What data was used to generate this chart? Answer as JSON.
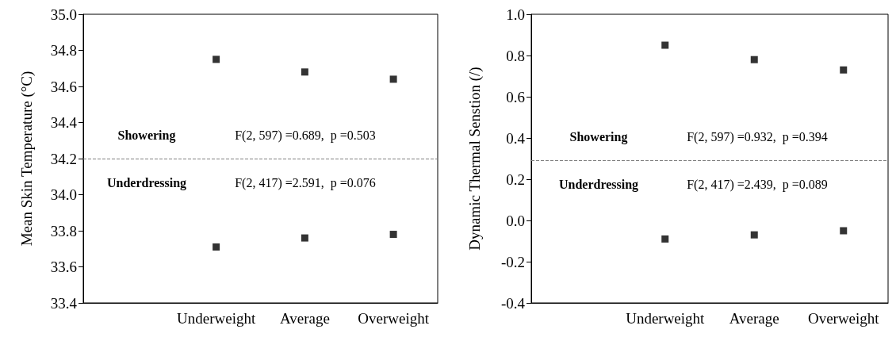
{
  "chart_data": [
    {
      "type": "scatter",
      "ylabel": "Mean Skin Temperature (°C)",
      "categories": [
        null,
        "Underweight",
        "Average",
        "Overweight"
      ],
      "series": [
        {
          "color": "#000000",
          "values": [
            null,
            34.75,
            34.68,
            34.64
          ]
        },
        {
          "color": "#000000",
          "values": [
            null,
            33.71,
            33.76,
            33.78
          ]
        }
      ],
      "ylim": [
        33.4,
        35.0
      ],
      "yticks": [
        33.4,
        33.6,
        33.8,
        {
          "value": 34,
          "label": "34.0"
        },
        34.2,
        34.4,
        34.6,
        34.8,
        {
          "value": 35,
          "label": "35.0"
        }
      ],
      "grid": false,
      "marker": "square",
      "ref_lines": [
        {
          "axis": "y",
          "value": 34.2,
          "color": "#808080",
          "line_style": "dashed"
        }
      ],
      "annotations": [
        "Showering",
        "F(2, 597) =0.689,  p =0.503",
        "Underdressing",
        "F(2, 417) =2.591,  p =0.076"
      ]
    },
    {
      "type": "scatter",
      "ylabel": "Dynamic Thermal Senstion (/)",
      "categories": [
        null,
        "Underweight",
        "Average",
        "Overweight"
      ],
      "series": [
        {
          "color": "#000000",
          "values": [
            null,
            0.85,
            0.78,
            0.73
          ]
        },
        {
          "color": "#000000",
          "values": [
            null,
            -0.09,
            -0.07,
            -0.05
          ]
        }
      ],
      "ylim": [
        -0.4,
        1.0
      ],
      "yticks": [
        -0.4,
        -0.2,
        {
          "value": 0,
          "label": "0.0"
        },
        0.2,
        0.4,
        0.6,
        0.8,
        {
          "value": 1,
          "label": "1.0"
        }
      ],
      "grid": false,
      "marker": "square",
      "ref_lines": [
        {
          "axis": "y",
          "value": 0.29,
          "color": "#808080",
          "line_style": "dashed"
        }
      ],
      "annotations": [
        "Showering",
        "F(2, 597) =0.932,  p =0.394",
        "Underdressing",
        "F(2, 417) =2.439,  p =0.089"
      ]
    }
  ]
}
